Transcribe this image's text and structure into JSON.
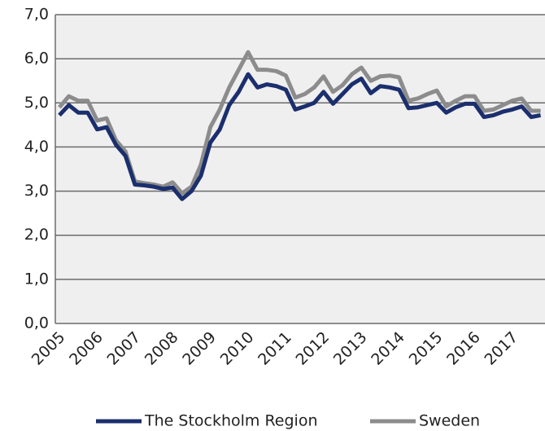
{
  "chart_data": {
    "type": "line",
    "categories": [
      "2005",
      null,
      null,
      null,
      "2006",
      null,
      null,
      null,
      "2007",
      null,
      null,
      null,
      "2008",
      null,
      null,
      null,
      "2009",
      null,
      null,
      null,
      "2010",
      null,
      null,
      null,
      "2011",
      null,
      null,
      null,
      "2012",
      null,
      null,
      null,
      "2013",
      null,
      null,
      null,
      "2014",
      null,
      null,
      null,
      "2015",
      null,
      null,
      null,
      "2016",
      null,
      null,
      null,
      "2017",
      null,
      null,
      null
    ],
    "series": [
      {
        "name": "The Stockholm Region",
        "color": "#1b2f6e",
        "values": [
          4.72,
          4.95,
          4.78,
          4.78,
          4.4,
          4.45,
          4.05,
          3.8,
          3.15,
          3.13,
          3.1,
          3.05,
          3.08,
          2.82,
          3.0,
          3.35,
          4.1,
          4.4,
          4.95,
          5.25,
          5.65,
          5.35,
          5.42,
          5.38,
          5.3,
          4.85,
          4.92,
          5.0,
          5.25,
          4.98,
          5.2,
          5.42,
          5.55,
          5.22,
          5.38,
          5.35,
          5.3,
          4.88,
          4.9,
          4.95,
          5.0,
          4.78,
          4.9,
          4.98,
          4.98,
          4.68,
          4.72,
          4.8,
          4.85,
          4.92,
          4.68,
          4.72
        ]
      },
      {
        "name": "Sweden",
        "color": "#8c8c8c",
        "values": [
          4.9,
          5.15,
          5.05,
          5.05,
          4.6,
          4.65,
          4.15,
          3.9,
          3.22,
          3.18,
          3.15,
          3.1,
          3.2,
          2.95,
          3.1,
          3.6,
          4.45,
          4.85,
          5.35,
          5.75,
          6.15,
          5.75,
          5.75,
          5.72,
          5.62,
          5.12,
          5.2,
          5.35,
          5.6,
          5.25,
          5.4,
          5.65,
          5.8,
          5.5,
          5.6,
          5.62,
          5.58,
          5.05,
          5.1,
          5.2,
          5.28,
          4.92,
          5.05,
          5.15,
          5.15,
          4.82,
          4.85,
          4.95,
          5.05,
          5.1,
          4.82,
          4.82
        ]
      }
    ],
    "ylim": [
      0,
      7
    ],
    "yticks": [
      {
        "value": 0,
        "label": "0,0"
      },
      {
        "value": 1,
        "label": "1,0"
      },
      {
        "value": 2,
        "label": "2,0"
      },
      {
        "value": 3,
        "label": "3,0"
      },
      {
        "value": 4,
        "label": "4,0"
      },
      {
        "value": 5,
        "label": "5,0"
      },
      {
        "value": 6,
        "label": "6,0"
      },
      {
        "value": 7,
        "label": "7,0"
      }
    ],
    "grid": true,
    "legend": "bottom"
  }
}
